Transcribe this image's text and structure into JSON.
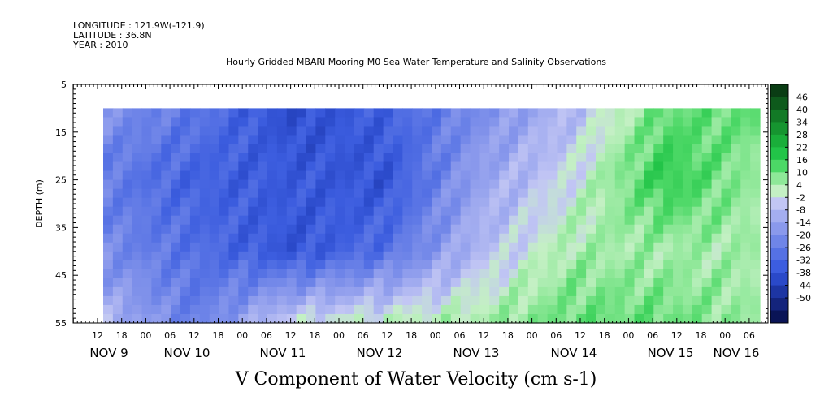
{
  "header": {
    "longitude": "LONGITUDE : 121.9W(-121.9)",
    "latitude": "LATITUDE : 36.8N",
    "year": "YEAR : 2010",
    "title": "Hourly Gridded MBARI Mooring M0 Sea Water Temperature and Salinity Observations"
  },
  "chart_data": {
    "type": "heatmap",
    "title": "Hourly Gridded MBARI Mooring M0 Sea Water Temperature and Salinity Observations",
    "xlabel": "V Component of Water Velocity (cm s-1)",
    "ylabel": "DEPTH (m)",
    "ylim": [
      55,
      5
    ],
    "y_ticks": [
      "5",
      "15",
      "25",
      "35",
      "45",
      "55"
    ],
    "x_ticks": [
      "12",
      "18",
      "00",
      "06",
      "12",
      "18",
      "00",
      "06",
      "12",
      "18",
      "00",
      "06",
      "12",
      "18",
      "00",
      "06",
      "12",
      "18",
      "00",
      "06",
      "12",
      "18",
      "00",
      "06",
      "12",
      "18",
      "00",
      "06"
    ],
    "x_day_labels": [
      "NOV  9",
      "NOV 10",
      "NOV 11",
      "NOV 12",
      "NOV 13",
      "NOV 14",
      "NOV 15",
      "NOV 16"
    ],
    "data_start": "NOV 9 15:00",
    "data_end": "NOV 16 07:00",
    "data_depth_range": [
      10,
      55
    ],
    "colorbar_labels": [
      "46",
      "40",
      "34",
      "28",
      "22",
      "16",
      "10",
      "4",
      "-2",
      "-8",
      "-14",
      "-20",
      "-26",
      "-32",
      "-38",
      "-44",
      "-50"
    ],
    "colorbar_colors": [
      "#0a3d14",
      "#0e5a1c",
      "#127a26",
      "#169530",
      "#1aae3a",
      "#22c448",
      "#4cd866",
      "#8ee898",
      "#c4f0c4",
      "#c2c6f4",
      "#a4aef0",
      "#8a99ec",
      "#6f85e8",
      "#5571e4",
      "#3c5ddf",
      "#2a49c9",
      "#1d35a3",
      "#14247c",
      "#0a1456"
    ],
    "field_profile_cm_s": {
      "NOV 9": [
        -12,
        -18,
        -14,
        -2
      ],
      "NOV 10": [
        -20,
        -26,
        -22,
        -18
      ],
      "NOV 11": [
        -32,
        -28,
        -30,
        4
      ],
      "NOV 12": [
        -26,
        -30,
        -22,
        8
      ],
      "NOV 13": [
        -14,
        -8,
        -2,
        10
      ],
      "NOV 14": [
        -2,
        4,
        10,
        16
      ],
      "NOV 15": [
        16,
        22,
        10,
        16
      ],
      "NOV 16": [
        16,
        10,
        10,
        10
      ]
    }
  }
}
